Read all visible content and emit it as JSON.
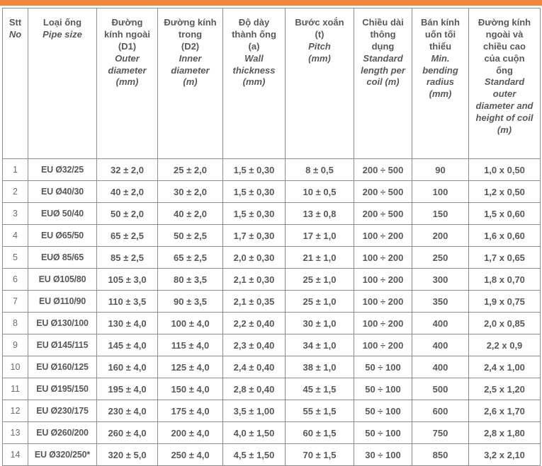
{
  "accent": {
    "color": "#F0873B"
  },
  "table": {
    "border_color": "#8C8C8C",
    "text_color": "#58595B",
    "columns": [
      {
        "vi": "Stt",
        "en": "No"
      },
      {
        "vi": "Loại ống",
        "en": "Pipe size"
      },
      {
        "vi": "Đường\nkính ngoài\n(D1)",
        "en": "Outer\ndiameter\n(mm)"
      },
      {
        "vi": "Đường kính\ntrong\n(D2)",
        "en": "Inner\ndiameter\n(m)"
      },
      {
        "vi": "Độ dày\nthành ống\n(a)",
        "en": "Wall\nthickness\n(mm)"
      },
      {
        "vi": "Bước xoắn\n(t)",
        "en": "Pitch\n(mm)"
      },
      {
        "vi": "Chiều dài\nthông\ndụng",
        "en": "Standard\nlength per\ncoil (m)"
      },
      {
        "vi": "Bán kính\nuốn tối\nthiểu",
        "en": "Min.\nbending\nradius\n(mm)"
      },
      {
        "vi": "Đường kính\nngoài và\nchiều cao\ncủa cuộn\nống",
        "en": "Standard\nouter\ndiameter and\nheight of coil\n(m)"
      }
    ],
    "rows": [
      [
        "1",
        "EU Ø32/25",
        "32 ± 2,0",
        "25 ± 2,0",
        "1,5 ± 0,30",
        "8 ± 0,5",
        "200 ÷ 500",
        "90",
        "1,0 x 0,50"
      ],
      [
        "2",
        "EU Ø40/30",
        "40 ± 2,0",
        "30 ± 2,0",
        "1,5 ± 0,30",
        "10 ± 0,5",
        "200 ÷ 500",
        "100",
        "1,2 x 0,50"
      ],
      [
        "3",
        "EUØ 50/40",
        "50 ± 2,0",
        "40 ± 2,0",
        "1,5 ± 0,30",
        "13 ± 0,8",
        "200 ÷ 500",
        "150",
        "1,5 x 0,60"
      ],
      [
        "4",
        "EU Ø65/50",
        "65 ± 2,5",
        "50 ± 2,5",
        "1,7 ± 0,30",
        "17 ± 1,0",
        "100 ÷ 200",
        "200",
        "1,6 x 0,60"
      ],
      [
        "5",
        "EUØ 85/65",
        "85 ± 2,5",
        "65 ± 2,5",
        "2,0 ± 0,30",
        "21 ± 1,0",
        "100 ÷ 200",
        "250",
        "1,7 x 0,65"
      ],
      [
        "6",
        "EU Ø105/80",
        "105 ± 3,0",
        "80 ± 3,5",
        "2,1 ± 0,30",
        "25 ± 1,0",
        "100 ÷ 200",
        "300",
        "1,8 x 0,70"
      ],
      [
        "7",
        "EU Ø110/90",
        "110 ± 3,5",
        "90 ± 3,5",
        "2,1 ± 0,35",
        "25 ± 1,0",
        "100 ÷ 200",
        "350",
        "1,9 x 0,75"
      ],
      [
        "8",
        "EU Ø130/100",
        "130 ± 4,0",
        "100 ± 4,0",
        "2,2 ± 0,40",
        "30 ± 1,0",
        "100 ÷ 200",
        "400",
        "2,0 x 0,85"
      ],
      [
        "9",
        "EU Ø145/115",
        "145 ± 4,0",
        "115 ± 4,0",
        "2,3 ± 0,40",
        "34 ± 1,0",
        "100 ÷ 200",
        "400",
        "2,2 x 0,9"
      ],
      [
        "10",
        "EU Ø160/125",
        "160 ± 4,0",
        "125 ± 4,0",
        "2,4 ± 0,40",
        "38 ± 1,0",
        "50 ÷ 100",
        "400",
        "2,4 x 1,00"
      ],
      [
        "11",
        "EU Ø195/150",
        "195 ± 4,0",
        "150 ± 4,0",
        "2,8 ± 0,40",
        "45 ± 1,5",
        "50 ÷ 100",
        "500",
        "2,5 x 1,20"
      ],
      [
        "12",
        "EU Ø230/175",
        "230 ± 4,0",
        "175 ± 4,0",
        "3,5 ± 1,00",
        "55 ± 1,5",
        "50 ÷ 100",
        "600",
        "2,6 x 1,70"
      ],
      [
        "13",
        "EU Ø260/200",
        "260 ± 4,0",
        "200 ± 4,0",
        "4,0 ± 1,50",
        "60 ± 1,5",
        "50 ÷ 100",
        "750",
        "2,8 x 1,80"
      ],
      [
        "14",
        "EU Ø320/250*",
        "320 ± 5,0",
        "250 ± 4,0",
        "4,5 ± 1,50",
        "70 ± 1,5",
        "30 ÷ 100",
        "850",
        "3,2 x 2,10"
      ]
    ]
  }
}
